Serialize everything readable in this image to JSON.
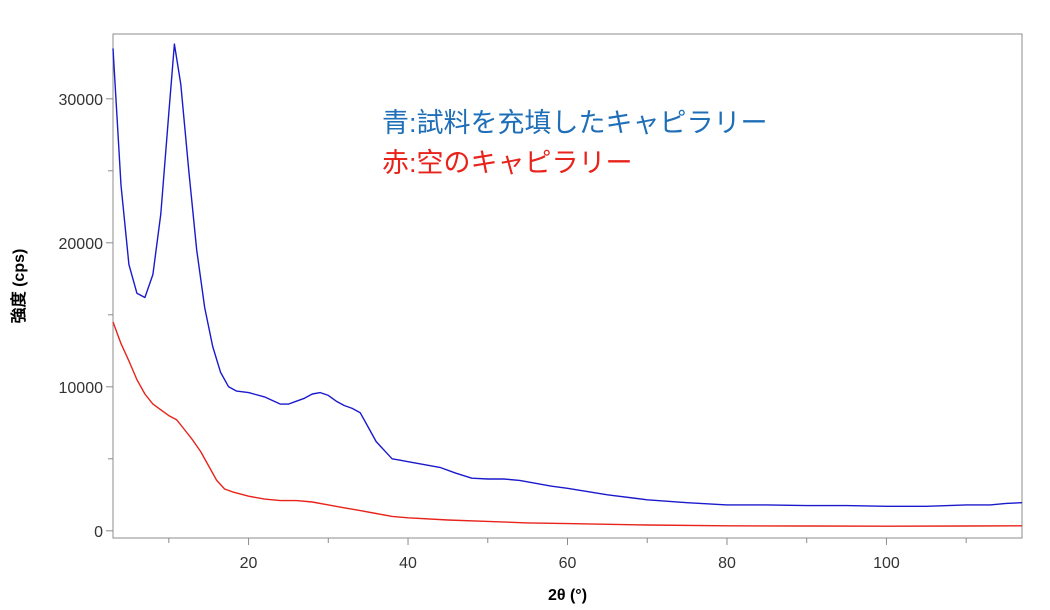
{
  "chart_data": {
    "type": "line",
    "xlabel": "2θ (°)",
    "ylabel": "強度 (cps)",
    "xlim": [
      3,
      117
    ],
    "ylim": [
      -500,
      34500
    ],
    "x_ticks": [
      20,
      40,
      60,
      80,
      100
    ],
    "y_ticks": [
      0,
      10000,
      20000,
      30000
    ],
    "grid": false,
    "annotations": [
      {
        "text": "青:試料を充填したキャピラリー",
        "color": "#1f6fb8"
      },
      {
        "text": "赤:空のキャピラリー",
        "color": "#e8231b"
      }
    ],
    "series": [
      {
        "color": "#1a1acc",
        "x": [
          3,
          4,
          5,
          6,
          7,
          8,
          9,
          10,
          10.7,
          11.5,
          12.5,
          13.5,
          14.5,
          15.5,
          16.5,
          17.5,
          18.5,
          20,
          22,
          24,
          25,
          26,
          27,
          28,
          29,
          30,
          31,
          32,
          33,
          34,
          35,
          36,
          37,
          38,
          39,
          40,
          42,
          44,
          46,
          48,
          50,
          52,
          54,
          56,
          58,
          60,
          65,
          70,
          75,
          80,
          85,
          90,
          95,
          100,
          105,
          110,
          113,
          115,
          117
        ],
        "y": [
          33500,
          24000,
          18500,
          16500,
          16200,
          17800,
          22000,
          29000,
          33800,
          31000,
          25000,
          19500,
          15500,
          12800,
          11000,
          10000,
          9700,
          9600,
          9300,
          8800,
          8800,
          9000,
          9200,
          9500,
          9600,
          9400,
          9000,
          8700,
          8500,
          8200,
          7200,
          6200,
          5600,
          5000,
          4900,
          4800,
          4600,
          4400,
          4000,
          3650,
          3600,
          3600,
          3500,
          3300,
          3100,
          2950,
          2500,
          2150,
          1950,
          1800,
          1800,
          1750,
          1750,
          1700,
          1700,
          1800,
          1800,
          1900,
          1950
        ]
      },
      {
        "color": "#e8231b",
        "x": [
          3,
          4,
          5,
          6,
          7,
          8,
          9,
          10,
          11,
          12,
          13,
          14,
          15,
          16,
          17,
          18,
          20,
          22,
          24,
          26,
          28,
          30,
          32,
          34,
          36,
          38,
          40,
          45,
          50,
          55,
          60,
          70,
          80,
          90,
          100,
          110,
          117
        ],
        "y": [
          14500,
          13000,
          11800,
          10500,
          9500,
          8800,
          8400,
          8000,
          7700,
          7000,
          6300,
          5500,
          4500,
          3500,
          2900,
          2700,
          2400,
          2200,
          2100,
          2100,
          2000,
          1800,
          1600,
          1400,
          1200,
          1000,
          900,
          750,
          650,
          550,
          500,
          400,
          350,
          330,
          320,
          330,
          350
        ]
      }
    ]
  }
}
